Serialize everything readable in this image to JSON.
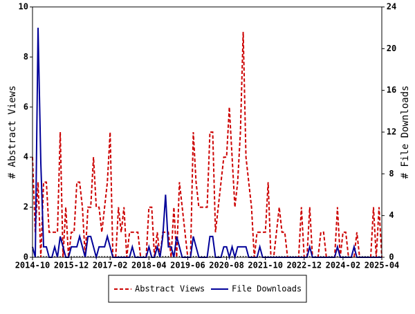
{
  "chart_data": {
    "type": "line",
    "ylabel": "# Abstract Views",
    "y2label": "# File Downloads",
    "x": [
      "2014-10",
      "2014-11",
      "2014-12",
      "2015-01",
      "2015-02",
      "2015-03",
      "2015-04",
      "2015-05",
      "2015-06",
      "2015-07",
      "2015-08",
      "2015-09",
      "2015-10",
      "2015-11",
      "2015-12",
      "2016-01",
      "2016-02",
      "2016-03",
      "2016-04",
      "2016-05",
      "2016-06",
      "2016-07",
      "2016-08",
      "2016-09",
      "2016-10",
      "2016-11",
      "2016-12",
      "2017-01",
      "2017-02",
      "2017-03",
      "2017-04",
      "2017-05",
      "2017-06",
      "2017-07",
      "2017-08",
      "2017-09",
      "2017-10",
      "2017-11",
      "2017-12",
      "2018-01",
      "2018-02",
      "2018-03",
      "2018-04",
      "2018-05",
      "2018-06",
      "2018-07",
      "2018-08",
      "2018-09",
      "2018-10",
      "2018-11",
      "2018-12",
      "2019-01",
      "2019-02",
      "2019-03",
      "2019-04",
      "2019-05",
      "2019-06",
      "2019-07",
      "2019-08",
      "2019-09",
      "2019-10",
      "2019-11",
      "2019-12",
      "2020-01",
      "2020-02",
      "2020-03",
      "2020-04",
      "2020-05",
      "2020-06",
      "2020-07",
      "2020-08",
      "2020-09",
      "2020-10",
      "2020-11",
      "2020-12",
      "2021-01",
      "2021-02",
      "2021-03",
      "2021-04",
      "2021-05",
      "2021-06",
      "2021-07",
      "2021-08",
      "2021-09",
      "2021-10",
      "2021-11",
      "2021-12",
      "2022-01",
      "2022-02",
      "2022-03",
      "2022-04",
      "2022-05",
      "2022-06",
      "2022-07",
      "2022-08",
      "2022-09",
      "2022-10",
      "2022-11",
      "2022-12",
      "2023-01",
      "2023-02",
      "2023-03",
      "2023-04",
      "2023-05",
      "2023-06",
      "2023-07",
      "2023-08",
      "2023-09",
      "2023-10",
      "2023-11",
      "2023-12",
      "2024-01",
      "2024-02",
      "2024-03",
      "2024-04",
      "2024-05",
      "2024-06",
      "2024-07",
      "2024-08",
      "2024-09",
      "2024-10",
      "2024-11",
      "2024-12",
      "2025-01",
      "2025-02",
      "2025-03",
      "2025-04"
    ],
    "series": [
      {
        "name": "Abstract Views",
        "color": "#cc0000",
        "dash": true,
        "values": [
          4,
          1,
          3,
          0,
          3,
          3,
          1,
          1,
          1,
          1,
          5,
          0,
          2,
          0,
          1,
          1,
          3,
          3,
          2,
          0,
          2,
          2,
          4,
          2,
          2,
          1,
          2,
          3,
          5,
          0,
          0,
          2,
          1,
          2,
          0,
          1,
          1,
          1,
          1,
          0,
          0,
          0,
          2,
          2,
          0,
          1,
          0,
          1,
          1,
          1,
          0,
          2,
          0,
          3,
          2,
          1,
          0,
          0,
          5,
          3,
          2,
          2,
          2,
          2,
          5,
          5,
          1,
          2,
          3,
          4,
          4,
          6,
          4,
          2,
          3,
          5,
          9,
          4,
          3,
          2,
          0,
          1,
          1,
          1,
          1,
          3,
          0,
          0,
          1,
          2,
          1,
          1,
          0,
          0,
          0,
          0,
          0,
          2,
          0,
          0,
          2,
          0,
          0,
          0,
          1,
          1,
          0,
          0,
          0,
          0,
          2,
          0,
          1,
          1,
          0,
          0,
          0,
          1,
          0,
          0,
          0,
          0,
          0,
          2,
          0,
          2,
          0
        ]
      },
      {
        "name": "File Downloads",
        "color": "#000099",
        "axis": "y2",
        "dash": false,
        "values": [
          1,
          0,
          22,
          9,
          1,
          1,
          0,
          0,
          1,
          0,
          2,
          1,
          0,
          0,
          1,
          1,
          1,
          2,
          1,
          0,
          2,
          2,
          1,
          0,
          1,
          1,
          1,
          2,
          1,
          0,
          0,
          0,
          0,
          0,
          0,
          0,
          1,
          0,
          0,
          0,
          0,
          0,
          1,
          0,
          0,
          1,
          0,
          2,
          6,
          1,
          1,
          0,
          2,
          1,
          0,
          0,
          0,
          0,
          2,
          1,
          0,
          0,
          0,
          0,
          2,
          2,
          0,
          0,
          0,
          1,
          1,
          0,
          1,
          0,
          1,
          1,
          1,
          1,
          0,
          0,
          0,
          0,
          1,
          0,
          0,
          0,
          0,
          0,
          0,
          0,
          0,
          0,
          0,
          0,
          0,
          0,
          0,
          0,
          0,
          0,
          1,
          0,
          0,
          0,
          0,
          0,
          0,
          0,
          0,
          0,
          1,
          0,
          0,
          0,
          0,
          0,
          1,
          0,
          0,
          0,
          0,
          0,
          0,
          0,
          0,
          0,
          0
        ]
      }
    ],
    "xticks": [
      "2014-10",
      "2015-12",
      "2017-02",
      "2018-04",
      "2019-06",
      "2020-08",
      "2021-10",
      "2022-12",
      "2024-02",
      "2025-04"
    ],
    "ylim": [
      0,
      10
    ],
    "yticks": [
      0,
      2,
      4,
      6,
      8,
      10
    ],
    "y2lim": [
      0,
      24
    ],
    "y2ticks": [
      0,
      4,
      8,
      12,
      16,
      20,
      24
    ],
    "legend": "bottom"
  }
}
